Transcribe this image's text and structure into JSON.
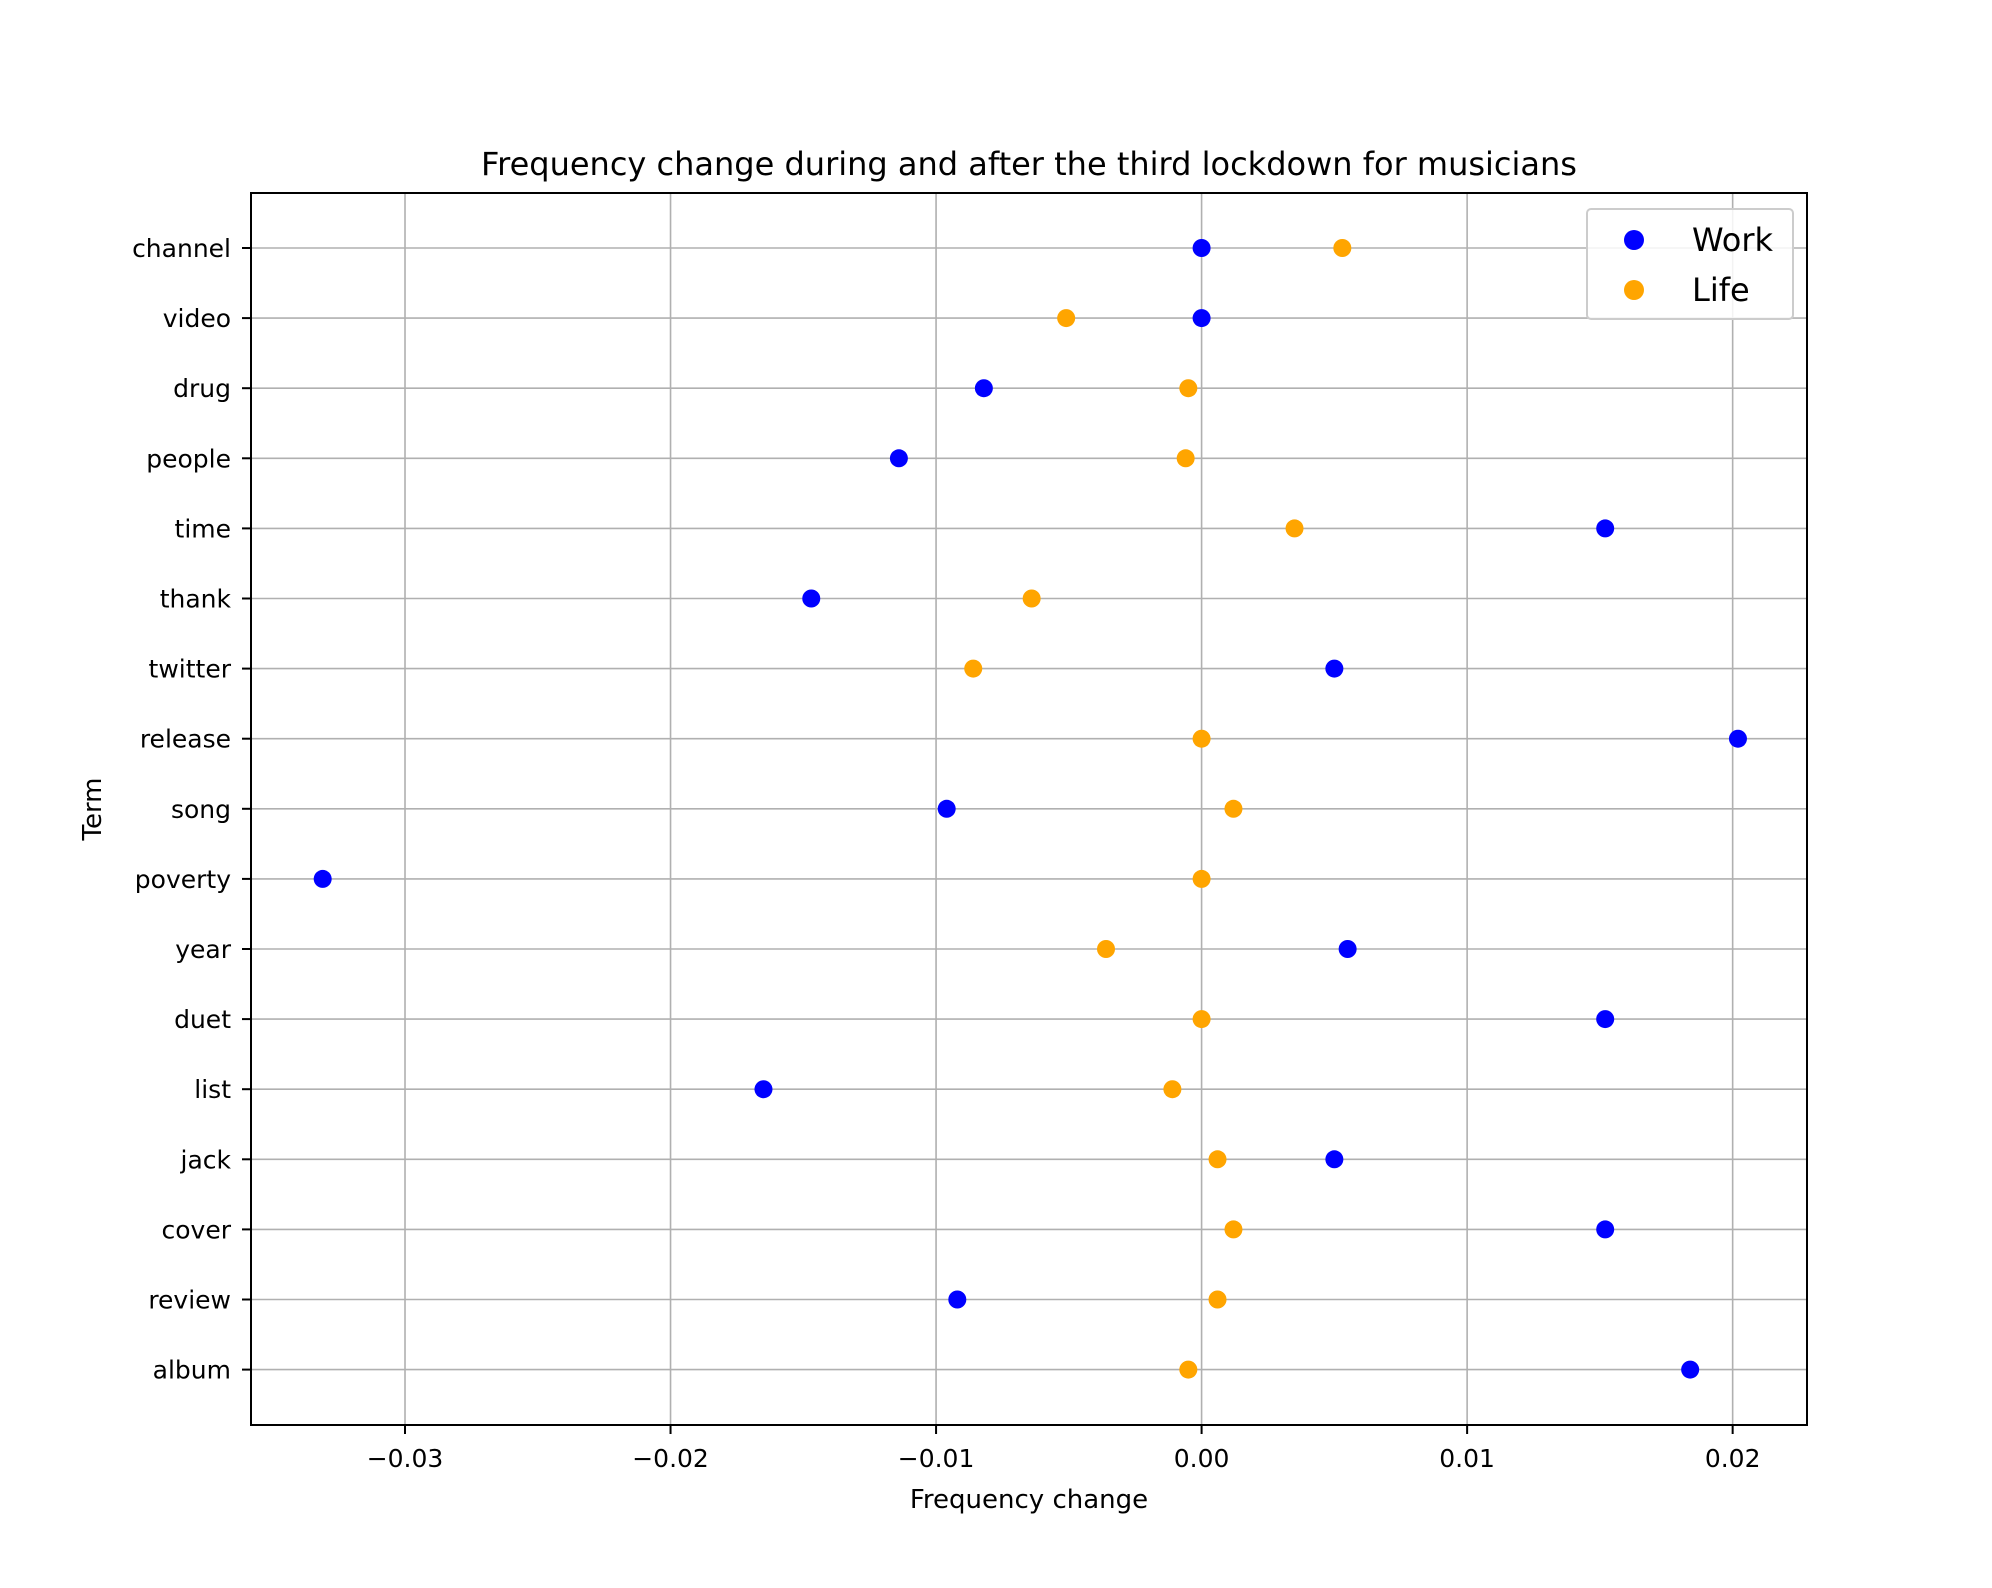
{
  "chart_data": {
    "type": "scatter",
    "title": "Frequency change during and after the third lockdown for musicians",
    "xlabel": "Frequency change",
    "ylabel": "Term",
    "xlim": [
      -0.0358,
      0.0228
    ],
    "x_ticks": [
      -0.03,
      -0.02,
      -0.01,
      0.0,
      0.01,
      0.02
    ],
    "x_tick_labels": [
      "−0.03",
      "−0.02",
      "−0.01",
      "0.00",
      "0.01",
      "0.02"
    ],
    "categories": [
      "channel",
      "video",
      "drug",
      "people",
      "time",
      "thank",
      "twitter",
      "release",
      "song",
      "poverty",
      "year",
      "duet",
      "list",
      "jack",
      "cover",
      "review",
      "album"
    ],
    "grid": true,
    "legend_position": "top-right",
    "series": [
      {
        "name": "Work",
        "color": "#0000ff",
        "values": [
          0.0,
          0.0,
          -0.0082,
          -0.0114,
          0.0152,
          -0.0147,
          0.005,
          0.0202,
          -0.0096,
          -0.0331,
          0.0055,
          0.0152,
          -0.0165,
          0.005,
          0.0152,
          -0.0092,
          0.0184
        ]
      },
      {
        "name": "Life",
        "color": "#ffa500",
        "values": [
          0.0053,
          -0.0051,
          -0.0005,
          -0.0006,
          0.0035,
          -0.0064,
          -0.0086,
          0.0,
          0.0012,
          0.0,
          -0.0036,
          0.0,
          -0.0011,
          0.0006,
          0.0012,
          0.0006,
          -0.0005
        ]
      }
    ]
  }
}
